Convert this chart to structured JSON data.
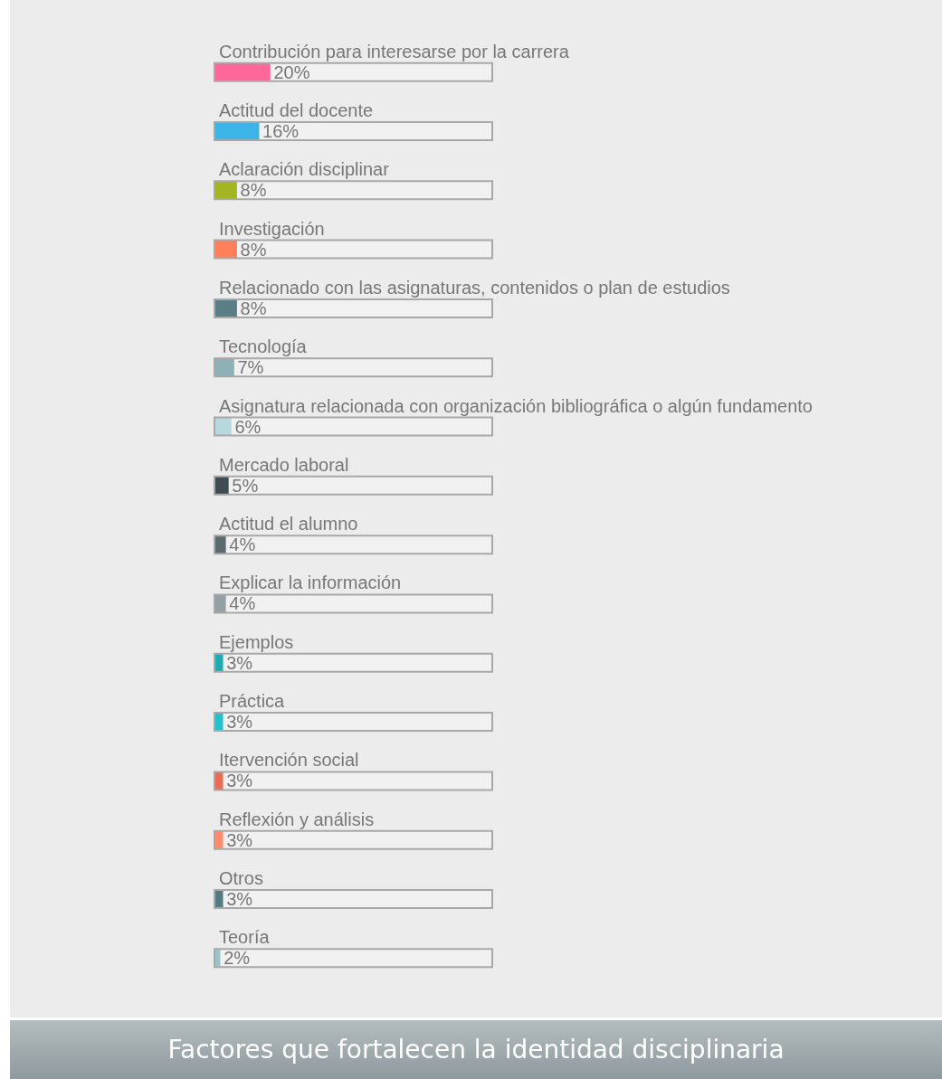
{
  "chart_data": {
    "type": "bar",
    "orientation": "horizontal",
    "title": "Factores que fortalecen la identidad disciplinaria",
    "categories": [
      "Contribución para interesarse por la carrera",
      "Actitud del docente",
      "Aclaración disciplinar",
      "Investigación",
      "Relacionado con las asignaturas, contenidos o plan de estudios",
      "Tecnología",
      "Asignatura relacionada con organización bibliográfica o algún fundamento",
      "Mercado laboral",
      "Actitud el alumno",
      "Explicar la información",
      "Ejemplos",
      "Práctica",
      "Itervención social",
      "Reflexión y análisis",
      "Otros",
      "Teoría"
    ],
    "values": [
      20,
      16,
      8,
      8,
      8,
      7,
      6,
      5,
      4,
      4,
      3,
      3,
      3,
      3,
      3,
      2
    ],
    "value_labels": [
      "20%",
      "16%",
      "8%",
      "8%",
      "8%",
      "7%",
      "6%",
      "5%",
      "4%",
      "4%",
      "3%",
      "3%",
      "3%",
      "3%",
      "3%",
      "2%"
    ],
    "colors": [
      "#ff6699",
      "#3db4e8",
      "#a3b522",
      "#ff7f5a",
      "#5a7e86",
      "#8fb0b6",
      "#b7d8de",
      "#3f4d52",
      "#5a6a6e",
      "#93a1a4",
      "#1fa9b0",
      "#22c1cc",
      "#eb6c55",
      "#ff8a6c",
      "#557b82",
      "#9cc3c9"
    ],
    "xlim": [
      0,
      100
    ],
    "legend": false,
    "tick_labels": false
  }
}
